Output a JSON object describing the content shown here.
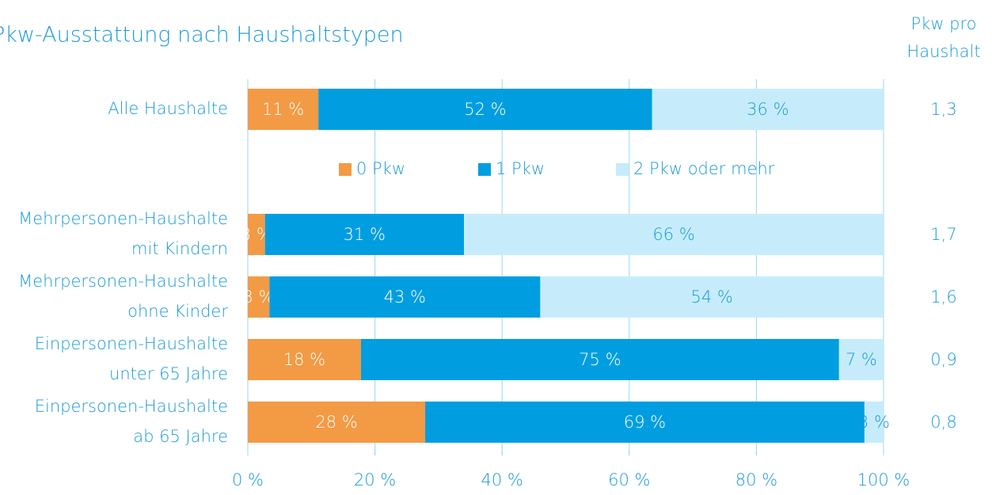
{
  "chart_data": {
    "type": "stacked-bar-horizontal",
    "title": "Pkw-Ausstattung nach Haushaltstypen",
    "categories": [
      [
        "Alle Haushalte"
      ],
      [
        "Mehrpersonen-Haushalte",
        "mit Kindern"
      ],
      [
        "Mehrpersonen-Haushalte",
        "ohne Kinder"
      ],
      [
        "Einpersonen-Haushalte",
        "unter 65 Jahre"
      ],
      [
        "Einpersonen-Haushalte",
        "ab 65 Jahre"
      ]
    ],
    "series": [
      {
        "name": "0 Pkw",
        "color": "#f39a45",
        "values": [
          11.1,
          2.7,
          3.4,
          17.8,
          27.9
        ],
        "value_labels": [
          "11 %",
          "3 %",
          "3 %",
          "18 %",
          "28 %"
        ]
      },
      {
        "name": "1 Pkw",
        "color": "#009ee0",
        "values": [
          52.5,
          31.3,
          42.6,
          75.2,
          69.1
        ],
        "value_labels": [
          "52 %",
          "31 %",
          "43 %",
          "75 %",
          "69 %"
        ]
      },
      {
        "name": "2 Pkw oder mehr",
        "color": "#c6ecfb",
        "values": [
          36.4,
          66.0,
          54.0,
          7.0,
          3.0
        ],
        "value_labels": [
          "36 %",
          "66 %",
          "54 %",
          "7 %",
          "3 %"
        ]
      }
    ],
    "xlim": [
      0,
      100
    ],
    "xticks": [
      {
        "value": 0,
        "label": "0 %"
      },
      {
        "value": 20,
        "label": "20 %"
      },
      {
        "value": 40,
        "label": "40 %"
      },
      {
        "value": 60,
        "label": "60 %"
      },
      {
        "value": 80,
        "label": "80 %"
      },
      {
        "value": 100,
        "label": "100 %"
      }
    ],
    "grid": true,
    "per_household": {
      "title": [
        "Pkw pro",
        "Haushalt"
      ],
      "values": [
        1.3,
        1.7,
        1.6,
        0.9,
        0.8
      ],
      "value_labels": [
        "1,3",
        "1,7",
        "1,6",
        "0,9",
        "0,8"
      ]
    }
  }
}
